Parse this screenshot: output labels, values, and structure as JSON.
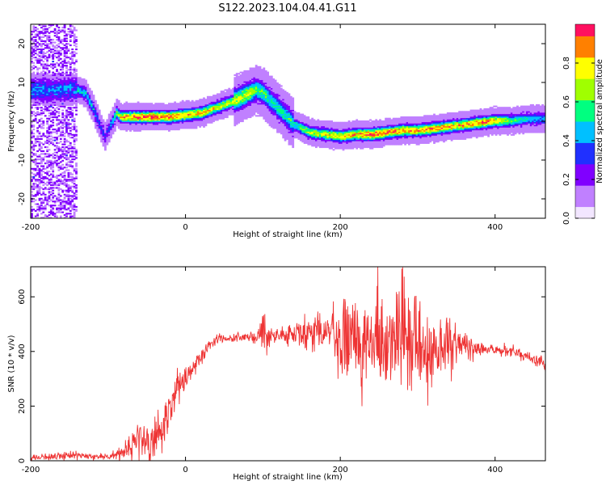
{
  "title": "S122.2023.104.04.41.G11",
  "colors": {
    "snr_line": "#ee3333",
    "colormap": [
      "#f2e6ff",
      "#c080ff",
      "#8000ff",
      "#2030ff",
      "#00c0ff",
      "#00ff80",
      "#a0ff00",
      "#ffff00",
      "#ff8000",
      "#ff1060"
    ]
  },
  "chart_data": [
    {
      "type": "heatmap",
      "xlabel": "Height of straight line (km)",
      "ylabel": "Frequency (Hz)",
      "xlim": [
        -200,
        465
      ],
      "ylim": [
        -25,
        25
      ],
      "xticks": [
        -200,
        0,
        200,
        400
      ],
      "yticks": [
        -20,
        -10,
        0,
        10,
        20
      ],
      "grid": false,
      "ridge": {
        "x": [
          -140,
          -130,
          -120,
          -110,
          -105,
          -100,
          -95,
          -90,
          -85,
          -80,
          -60,
          -40,
          -20,
          0,
          20,
          40,
          60,
          80,
          90,
          100,
          110,
          120,
          140,
          160,
          180,
          200,
          220,
          240,
          260,
          280,
          300,
          320,
          340,
          360,
          380,
          400,
          420,
          440,
          465
        ],
        "freq_hz": [
          8,
          7,
          3,
          -2,
          -4,
          -2,
          0,
          2,
          1,
          1,
          1,
          1,
          1,
          1.5,
          2,
          3.5,
          5,
          7,
          8,
          7,
          5,
          3,
          -1,
          -3,
          -3.5,
          -4,
          -3.5,
          -3.5,
          -3,
          -2.5,
          -2.5,
          -2,
          -1.5,
          -1,
          -0.5,
          0,
          0,
          0.5,
          0.5
        ],
        "amplitude": [
          0.5,
          0.5,
          0.45,
          0.35,
          0.3,
          0.4,
          0.5,
          0.6,
          0.75,
          0.85,
          0.95,
          0.95,
          0.9,
          0.85,
          0.85,
          0.75,
          0.75,
          0.7,
          0.6,
          0.6,
          0.55,
          0.55,
          0.55,
          0.7,
          0.75,
          0.8,
          0.85,
          0.95,
          0.95,
          0.9,
          0.85,
          0.9,
          0.85,
          0.85,
          0.9,
          0.85,
          0.6,
          0.5,
          0.4
        ]
      },
      "noise_region_x": [
        -200,
        -140
      ],
      "colorbar": {
        "label": "Normalized spectral amplitude",
        "range": [
          0,
          1
        ],
        "ticks": [
          "0.0",
          "0.2",
          "0.4",
          "0.6",
          "0.8"
        ]
      }
    },
    {
      "type": "line",
      "xlabel": "Height of straight line (km)",
      "ylabel": "SNR (10 * v/v)",
      "xlim": [
        -200,
        465
      ],
      "ylim": [
        0,
        710
      ],
      "xticks": [
        -200,
        0,
        200,
        400
      ],
      "yticks": [
        0,
        200,
        400,
        600
      ],
      "grid": false,
      "series": [
        {
          "x": [
            -200,
            -180,
            -160,
            -140,
            -120,
            -100,
            -90,
            -80,
            -70,
            -60,
            -50,
            -40,
            -30,
            -20,
            -10,
            0,
            10,
            20,
            30,
            40,
            60,
            80,
            95,
            100,
            105,
            120,
            140,
            160,
            180,
            200,
            220,
            240,
            260,
            280,
            300,
            320,
            340,
            360,
            380,
            400,
            420,
            440,
            460,
            465
          ],
          "y": [
            10,
            15,
            20,
            20,
            15,
            15,
            20,
            30,
            50,
            80,
            70,
            60,
            110,
            190,
            260,
            300,
            340,
            380,
            420,
            445,
            450,
            455,
            440,
            470,
            440,
            455,
            465,
            470,
            460,
            455,
            440,
            440,
            440,
            440,
            430,
            420,
            420,
            420,
            410,
            405,
            400,
            385,
            360,
            340
          ],
          "spread": [
            8,
            10,
            12,
            12,
            10,
            10,
            15,
            30,
            50,
            60,
            60,
            50,
            60,
            70,
            50,
            40,
            30,
            25,
            20,
            15,
            12,
            12,
            40,
            60,
            40,
            20,
            40,
            60,
            80,
            120,
            140,
            160,
            180,
            170,
            150,
            120,
            80,
            40,
            20,
            15,
            15,
            15,
            20,
            25
          ]
        }
      ]
    }
  ]
}
